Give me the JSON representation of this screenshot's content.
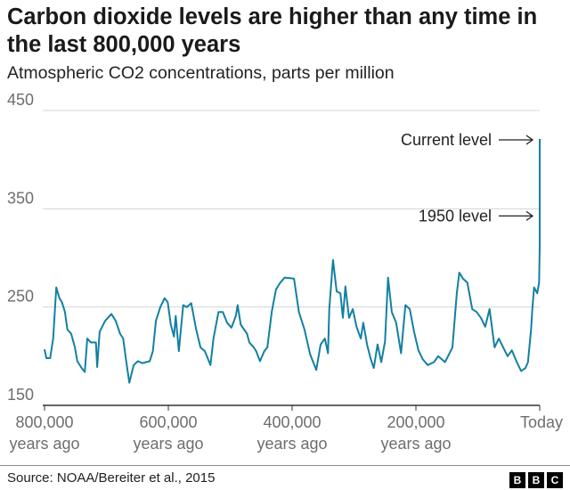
{
  "header": {
    "title": "Carbon dioxide levels are higher than any time in the last 800,000 years",
    "subtitle": "Atmospheric CO2 concentrations, parts per million"
  },
  "footer": {
    "source": "Source: NOAA/Bereiter et al., 2015",
    "logo": "BBC"
  },
  "chart_data": {
    "type": "line",
    "title": "Carbon dioxide levels are higher than any time in the last 800,000 years",
    "subtitle": "Atmospheric CO2 concentrations, parts per million",
    "xlabel": "",
    "ylabel": "",
    "xlim": [
      800000,
      0
    ],
    "ylim": [
      150,
      450
    ],
    "grid": true,
    "line_color": "#1380A1",
    "y_ticks": [
      {
        "value": 450,
        "label": "450"
      },
      {
        "value": 350,
        "label": "350"
      },
      {
        "value": 250,
        "label": "250"
      },
      {
        "value": 150,
        "label": "150"
      }
    ],
    "x_ticks": [
      {
        "value": 800000,
        "line1": "800,000",
        "line2": "years ago"
      },
      {
        "value": 600000,
        "line1": "600,000",
        "line2": "years ago"
      },
      {
        "value": 400000,
        "line1": "400,000",
        "line2": "years ago"
      },
      {
        "value": 200000,
        "line1": "200,000",
        "line2": "years ago"
      },
      {
        "value": 0,
        "line1": "Today",
        "line2": ""
      }
    ],
    "annotations": [
      {
        "label": "Current level",
        "value": 421
      },
      {
        "label": "1950 level",
        "value": 311
      }
    ],
    "series": [
      {
        "x": [
          800000,
          797000,
          791000,
          786000,
          781000,
          776000,
          772000,
          767000,
          763000,
          757000,
          751000,
          747000,
          740000,
          735000,
          731000,
          725000,
          717000,
          715000,
          711000,
          702000,
          692000,
          685000,
          678000,
          673000,
          668000,
          663000,
          656000,
          649000,
          642000,
          630000,
          625000,
          620000,
          613000,
          606000,
          601000,
          596000,
          591000,
          588000,
          583000,
          576000,
          570000,
          563000,
          555000,
          548000,
          541000,
          532000,
          527000,
          519000,
          512000,
          505000,
          498000,
          491000,
          488000,
          483000,
          473000,
          469000,
          462000,
          458000,
          452000,
          445000,
          440000,
          433000,
          426000,
          419000,
          412000,
          397000,
          389000,
          380000,
          371000,
          361000,
          354000,
          347000,
          342000,
          340000,
          334000,
          328000,
          322000,
          318000,
          314000,
          308000,
          302000,
          296000,
          289000,
          285000,
          279000,
          273000,
          268000,
          262000,
          256000,
          250000,
          245000,
          239000,
          232000,
          224000,
          217000,
          210000,
          203000,
          196000,
          189000,
          181000,
          171000,
          164000,
          153000,
          141000,
          134000,
          130000,
          124000,
          117000,
          109000,
          102000,
          95000,
          88000,
          81000,
          73000,
          66000,
          59000,
          52000,
          45000,
          37000,
          30000,
          23000,
          19000,
          14000,
          12000,
          9000,
          4000,
          1000,
          70,
          0
        ],
        "y": [
          207,
          198,
          198,
          218,
          270,
          259,
          255,
          245,
          227,
          223,
          209,
          195,
          188,
          184,
          218,
          214,
          214,
          189,
          225,
          236,
          243,
          236,
          223,
          218,
          195,
          173,
          191,
          195,
          193,
          195,
          205,
          236,
          250,
          259,
          255,
          232,
          220,
          241,
          205,
          252,
          250,
          254,
          227,
          209,
          205,
          191,
          218,
          245,
          245,
          234,
          229,
          241,
          252,
          232,
          223,
          214,
          209,
          205,
          195,
          205,
          209,
          245,
          268,
          275,
          280,
          279,
          245,
          227,
          202,
          186,
          212,
          218,
          203,
          248,
          298,
          266,
          264,
          239,
          271,
          239,
          248,
          230,
          218,
          234,
          212,
          197,
          188,
          212,
          194,
          215,
          280,
          245,
          234,
          203,
          252,
          248,
          225,
          206,
          197,
          191,
          194,
          200,
          194,
          209,
          264,
          285,
          279,
          275,
          248,
          245,
          239,
          230,
          248,
          209,
          218,
          209,
          200,
          206,
          194,
          185,
          188,
          194,
          227,
          248,
          270,
          264,
          275,
          311,
          421
        ]
      }
    ]
  }
}
